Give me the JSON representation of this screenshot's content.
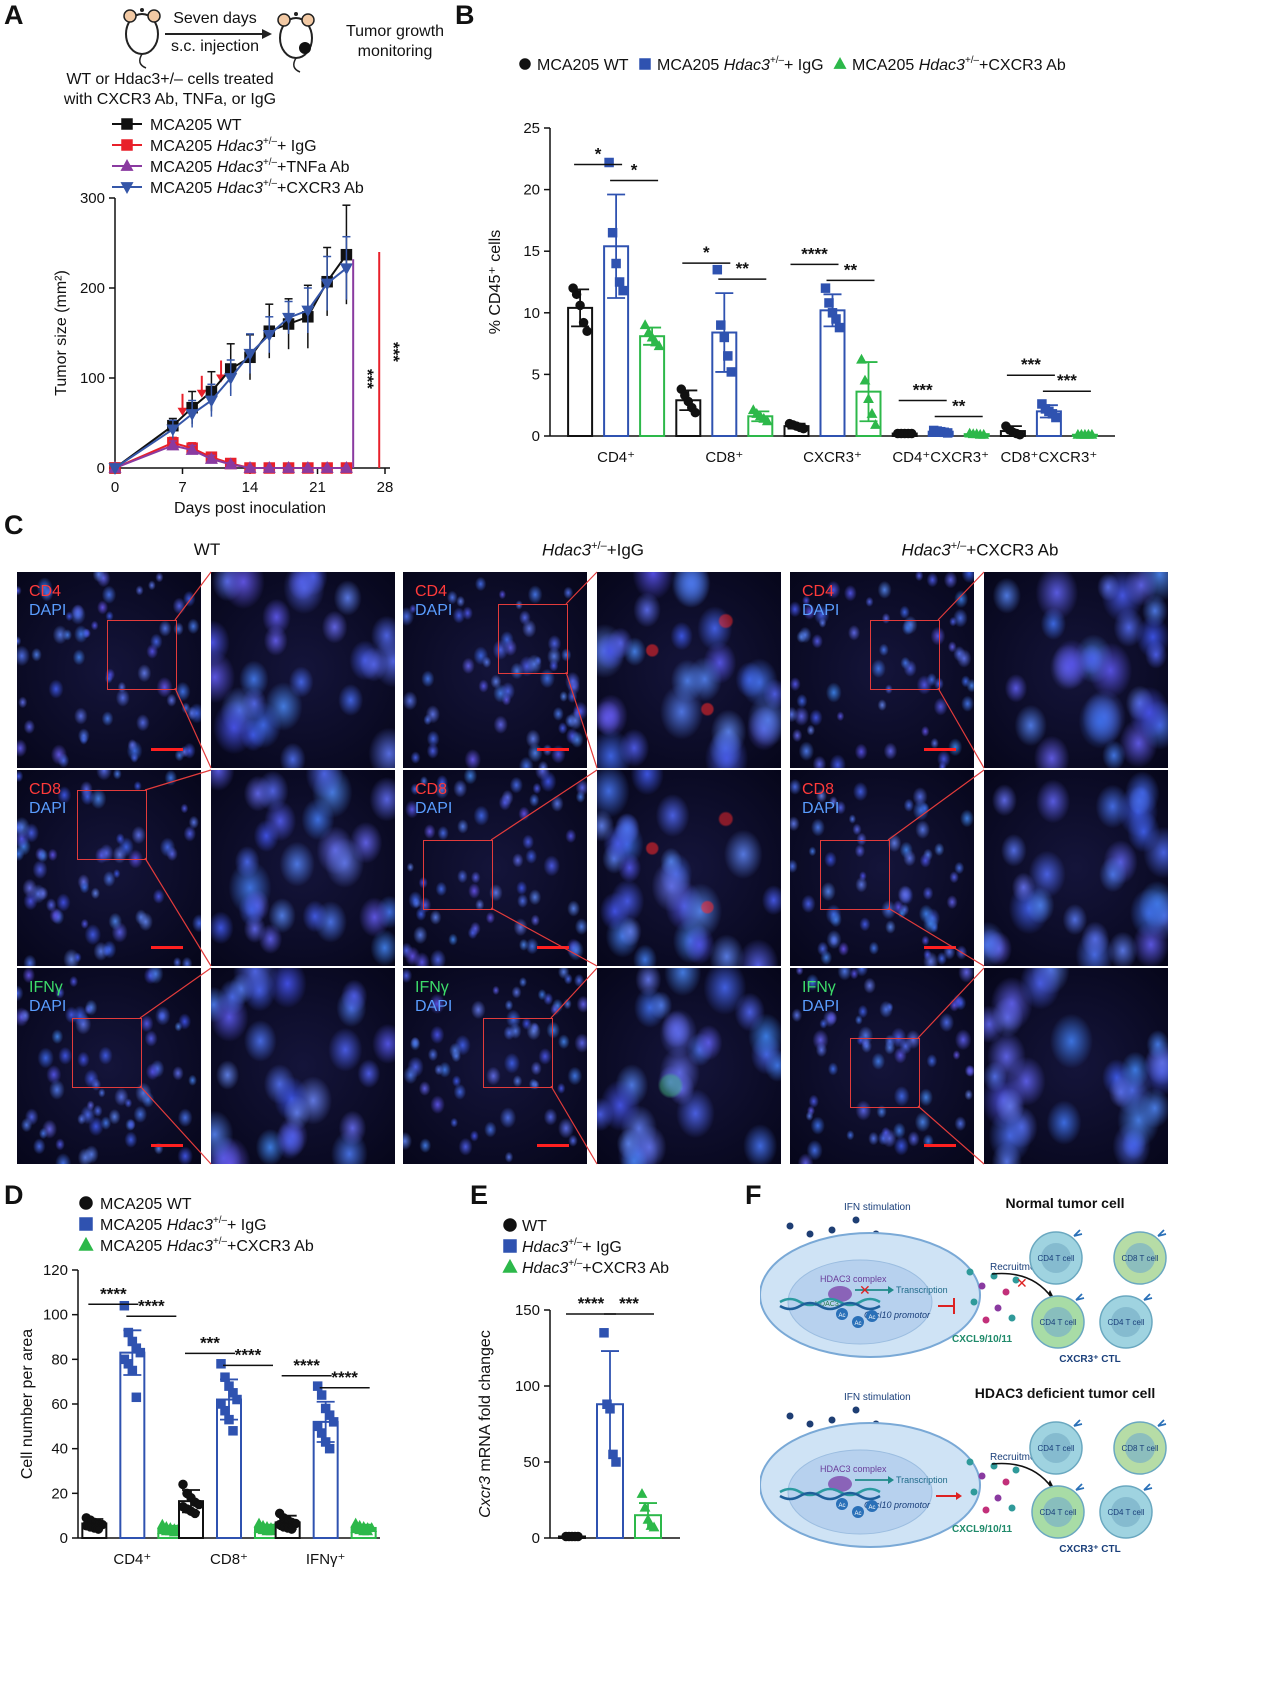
{
  "panelA": {
    "letter": "A",
    "arrow_top": "Seven days",
    "arrow_bottom": "s.c. injection",
    "right_label_1": "Tumor growth",
    "right_label_2": "monitoring",
    "cells_line_1": "WT or Hdac3+/– cells treated",
    "cells_line_2": "with CXCR3 Ab, TNFa, or IgG",
    "sig_purple": "***",
    "sig_red": "***",
    "legend": [
      {
        "name": "MCA205 WT",
        "color": "#111111",
        "marker": "square"
      },
      {
        "name": "MCA205 Hdac3+/–+ IgG",
        "color": "#e8202a",
        "marker": "square"
      },
      {
        "name": "MCA205 Hdac3+/–+TNFa Ab",
        "color": "#8a3aa0",
        "marker": "triangle-up"
      },
      {
        "name": "MCA205 Hdac3+/–+CXCR3 Ab",
        "color": "#3556a8",
        "marker": "triangle-down"
      }
    ]
  },
  "panelB": {
    "letter": "B",
    "legend": [
      {
        "name": "MCA205 WT",
        "color": "#111111",
        "marker": "circle"
      },
      {
        "name": "MCA205 Hdac3+/–+ IgG",
        "color": "#2f52b0",
        "marker": "square"
      },
      {
        "name": "MCA205 Hdac3+/–+CXCR3 Ab",
        "color": "#2db84a",
        "marker": "triangle-up"
      }
    ]
  },
  "panelC": {
    "letter": "C",
    "columns": [
      "WT",
      "Hdac3+/–+IgG",
      "Hdac3+/–+CXCR3 Ab"
    ],
    "rows": [
      {
        "stain": "CD4",
        "counter": "DAPI",
        "stain_color": "red"
      },
      {
        "stain": "CD8",
        "counter": "DAPI",
        "stain_color": "red"
      },
      {
        "stain": "IFNγ",
        "counter": "DAPI",
        "stain_color": "green"
      }
    ]
  },
  "panelD": {
    "letter": "D",
    "legend": [
      {
        "name": "MCA205 WT",
        "color": "#111111",
        "marker": "circle"
      },
      {
        "name": "MCA205 Hdac3+/–+ IgG",
        "color": "#2f52b0",
        "marker": "square"
      },
      {
        "name": "MCA205 Hdac3+/–+CXCR3 Ab",
        "color": "#2db84a",
        "marker": "triangle-up"
      }
    ]
  },
  "panelE": {
    "letter": "E",
    "legend": [
      {
        "name": "WT",
        "color": "#111111",
        "marker": "circle"
      },
      {
        "name": "Hdac3+/–+ IgG",
        "color": "#2f52b0",
        "marker": "square"
      },
      {
        "name": "Hdac3+/–+CXCR3 Ab",
        "color": "#2db84a",
        "marker": "triangle-up"
      }
    ]
  },
  "panelF": {
    "letter": "F",
    "top_title": "Normal tumor cell",
    "bottom_title": "HDAC3 deficient tumor cell",
    "ifn": "IFN stimulation",
    "hdac_complex": "HDAC3 complex",
    "hdac3": "HDAC3",
    "transcription": "Transcription",
    "promotor": "Cxcl10 promotor",
    "ac": "Ac",
    "recruitment": "Recruitment",
    "cxcl": "CXCL9/10/11",
    "ctl": "CXCR3⁺ CTL",
    "cd4": "CD4 T cell",
    "cd8": "CD8 T cell"
  },
  "chart_data": [
    {
      "type": "line",
      "panel": "A",
      "xlabel": "Days post inoculation",
      "ylabel": "Tumor size (mm²)",
      "xlim": [
        0,
        28
      ],
      "ylim": [
        0,
        300
      ],
      "xticks": [
        0,
        7,
        14,
        21,
        28
      ],
      "yticks": [
        0,
        100,
        200,
        300
      ],
      "treatment_days": [
        7,
        9,
        11
      ],
      "series": [
        {
          "name": "MCA205 WT",
          "color": "#111111",
          "marker": "square",
          "x": [
            0,
            6,
            8,
            10,
            12,
            14,
            16,
            18,
            20,
            22,
            24
          ],
          "y": [
            0,
            47,
            67,
            85,
            110,
            123,
            152,
            160,
            168,
            207,
            237
          ],
          "err": [
            0,
            8,
            18,
            22,
            28,
            25,
            30,
            28,
            35,
            38,
            55
          ]
        },
        {
          "name": "MCA205 Hdac3+/–+ IgG",
          "color": "#e8202a",
          "marker": "square",
          "x": [
            0,
            6,
            8,
            10,
            12,
            14,
            16,
            18,
            20,
            22,
            24
          ],
          "y": [
            0,
            28,
            22,
            12,
            5,
            0,
            0,
            0,
            0,
            0,
            0
          ],
          "err": [
            0,
            6,
            6,
            5,
            3,
            1,
            0,
            0,
            0,
            0,
            0
          ]
        },
        {
          "name": "MCA205 Hdac3+/–+TNFa Ab",
          "color": "#8a3aa0",
          "marker": "triangle-up",
          "x": [
            0,
            6,
            8,
            10,
            12,
            14,
            16,
            18,
            20,
            22,
            24
          ],
          "y": [
            0,
            25,
            20,
            10,
            4,
            0,
            0,
            0,
            0,
            0,
            0
          ],
          "err": [
            0,
            5,
            5,
            4,
            2,
            1,
            0,
            0,
            0,
            0,
            0
          ]
        },
        {
          "name": "MCA205 Hdac3+/–+CXCR3 Ab",
          "color": "#3556a8",
          "marker": "triangle-down",
          "x": [
            0,
            6,
            8,
            10,
            12,
            14,
            16,
            18,
            20,
            22,
            24
          ],
          "y": [
            0,
            43,
            60,
            75,
            100,
            127,
            148,
            167,
            175,
            205,
            222
          ],
          "err": [
            0,
            10,
            15,
            18,
            20,
            22,
            20,
            18,
            25,
            30,
            35
          ]
        }
      ]
    },
    {
      "type": "bar",
      "panel": "B",
      "ylabel": "% CD45⁺ cells",
      "ylim": [
        0,
        25
      ],
      "yticks": [
        0,
        5,
        10,
        15,
        20,
        25
      ],
      "categories": [
        "CD4⁺",
        "CD8⁺",
        "CXCR3⁺",
        "CD4⁺CXCR3⁺",
        "CD8⁺CXCR3⁺"
      ],
      "series": [
        {
          "name": "MCA205 WT",
          "color": "#111111",
          "values": [
            10.4,
            2.9,
            0.8,
            0.2,
            0.4
          ],
          "err": [
            1.5,
            0.8,
            0.2,
            0.05,
            0.4
          ],
          "points": [
            [
              12,
              11.5,
              10.6,
              9.2,
              8.5
            ],
            [
              3.8,
              3.3,
              2.8,
              2.3,
              1.9
            ],
            [
              1.0,
              0.9,
              0.8,
              0.7,
              0.6
            ],
            [
              0.2,
              0.2,
              0.2,
              0.2,
              0.2
            ],
            [
              0.8,
              0.5,
              0.3,
              0.2,
              0.1
            ]
          ]
        },
        {
          "name": "MCA205 Hdac3+/–+ IgG",
          "color": "#2f52b0",
          "values": [
            15.4,
            8.4,
            10.2,
            0.35,
            2.0
          ],
          "err": [
            4.2,
            3.2,
            1.3,
            0.1,
            0.5
          ],
          "points": [
            [
              22.2,
              16.5,
              14.0,
              12.5,
              11.8
            ],
            [
              13.5,
              9.0,
              8.0,
              6.5,
              5.2
            ],
            [
              12.0,
              10.8,
              10.0,
              9.5,
              8.8
            ],
            [
              0.45,
              0.4,
              0.35,
              0.3,
              0.25
            ],
            [
              2.6,
              2.2,
              2.0,
              1.8,
              1.5
            ]
          ]
        },
        {
          "name": "MCA205 Hdac3+/–+CXCR3 Ab",
          "color": "#2db84a",
          "values": [
            8.1,
            1.6,
            3.6,
            0.15,
            0.1
          ],
          "err": [
            0.7,
            0.4,
            2.4,
            0.05,
            0.05
          ],
          "points": [
            [
              9.0,
              8.4,
              8.0,
              7.6,
              7.3
            ],
            [
              2.1,
              1.8,
              1.6,
              1.4,
              1.2
            ],
            [
              6.2,
              4.5,
              3.0,
              1.8,
              0.9
            ],
            [
              0.2,
              0.15,
              0.15,
              0.1,
              0.1
            ],
            [
              0.1,
              0.1,
              0.1,
              0.1,
              0.1
            ]
          ]
        }
      ],
      "significance": [
        {
          "label": "*",
          "category": 0,
          "pair": [
            0,
            1
          ]
        },
        {
          "label": "*",
          "category": 0,
          "pair": [
            1,
            2
          ]
        },
        {
          "label": "*",
          "category": 1,
          "pair": [
            0,
            1
          ]
        },
        {
          "label": "**",
          "category": 1,
          "pair": [
            1,
            2
          ]
        },
        {
          "label": "****",
          "category": 2,
          "pair": [
            0,
            1
          ]
        },
        {
          "label": "**",
          "category": 2,
          "pair": [
            1,
            2
          ]
        },
        {
          "label": "***",
          "category": 3,
          "pair": [
            0,
            1
          ]
        },
        {
          "label": "**",
          "category": 3,
          "pair": [
            1,
            2
          ]
        },
        {
          "label": "***",
          "category": 4,
          "pair": [
            0,
            1
          ]
        },
        {
          "label": "***",
          "category": 4,
          "pair": [
            1,
            2
          ]
        }
      ]
    },
    {
      "type": "bar",
      "panel": "D",
      "ylabel": "Cell number per area",
      "ylim": [
        0,
        120
      ],
      "yticks": [
        0,
        20,
        40,
        60,
        80,
        100,
        120
      ],
      "categories": [
        "CD4⁺",
        "CD8⁺",
        "IFNγ⁺"
      ],
      "series": [
        {
          "name": "MCA205 WT",
          "color": "#111111",
          "values": [
            6.5,
            16.5,
            7.0
          ],
          "err": [
            2.0,
            5.0,
            3.0
          ],
          "points": [
            [
              9,
              8,
              7,
              6.5,
              6,
              5.5,
              5,
              4.5,
              4
            ],
            [
              24,
              20,
              18,
              16,
              15,
              14,
              13,
              12,
              11
            ],
            [
              11,
              9,
              8,
              7,
              6.5,
              6,
              5,
              4.5,
              4
            ]
          ]
        },
        {
          "name": "MCA205 Hdac3+/–+ IgG",
          "color": "#2f52b0",
          "values": [
            83,
            62,
            52
          ],
          "err": [
            10,
            9,
            9
          ],
          "points": [
            [
              104,
              92,
              88,
              85,
              83,
              80,
              78,
              75,
              63
            ],
            [
              78,
              72,
              68,
              65,
              62,
              60,
              57,
              53,
              48
            ],
            [
              68,
              64,
              58,
              55,
              52,
              50,
              47,
              43,
              40
            ]
          ]
        },
        {
          "name": "MCA205 Hdac3+/–+CXCR3 Ab",
          "color": "#2db84a",
          "values": [
            4.0,
            4.5,
            4.5
          ],
          "err": [
            1.5,
            1.5,
            1.5
          ],
          "points": [
            [
              6,
              5,
              4.5,
              4,
              4,
              3.5,
              3,
              3,
              2.5
            ],
            [
              6.5,
              5.5,
              5,
              4.5,
              4.5,
              4,
              3.5,
              3,
              3
            ],
            [
              6.5,
              5.5,
              5,
              4.5,
              4.5,
              4,
              3.5,
              3,
              3
            ]
          ]
        }
      ],
      "significance": [
        {
          "label": "****",
          "category": 0,
          "pair": [
            0,
            1
          ]
        },
        {
          "label": "****",
          "category": 0,
          "pair": [
            1,
            2
          ]
        },
        {
          "label": "***",
          "category": 1,
          "pair": [
            0,
            1
          ]
        },
        {
          "label": "****",
          "category": 1,
          "pair": [
            1,
            2
          ]
        },
        {
          "label": "****",
          "category": 2,
          "pair": [
            0,
            1
          ]
        },
        {
          "label": "****",
          "category": 2,
          "pair": [
            1,
            2
          ]
        }
      ]
    },
    {
      "type": "bar",
      "panel": "E",
      "ylabel": "Cxcr3 mRNA fold changec",
      "ylim": [
        0,
        150
      ],
      "yticks": [
        0,
        50,
        100,
        150
      ],
      "categories": [
        "WT",
        "Hdac3+/–+ IgG",
        "Hdac3+/–+CXCR3 Ab"
      ],
      "values": [
        1,
        88,
        15
      ],
      "err": [
        0.5,
        35,
        8
      ],
      "colors": [
        "#111111",
        "#2f52b0",
        "#2db84a"
      ],
      "points": [
        [
          1,
          1,
          1,
          1,
          1
        ],
        [
          135,
          88,
          85,
          55,
          50
        ],
        [
          29,
          20,
          12,
          8,
          7
        ]
      ],
      "significance": [
        {
          "label": "****",
          "pair": [
            0,
            1
          ]
        },
        {
          "label": "***",
          "pair": [
            1,
            2
          ]
        }
      ]
    }
  ]
}
